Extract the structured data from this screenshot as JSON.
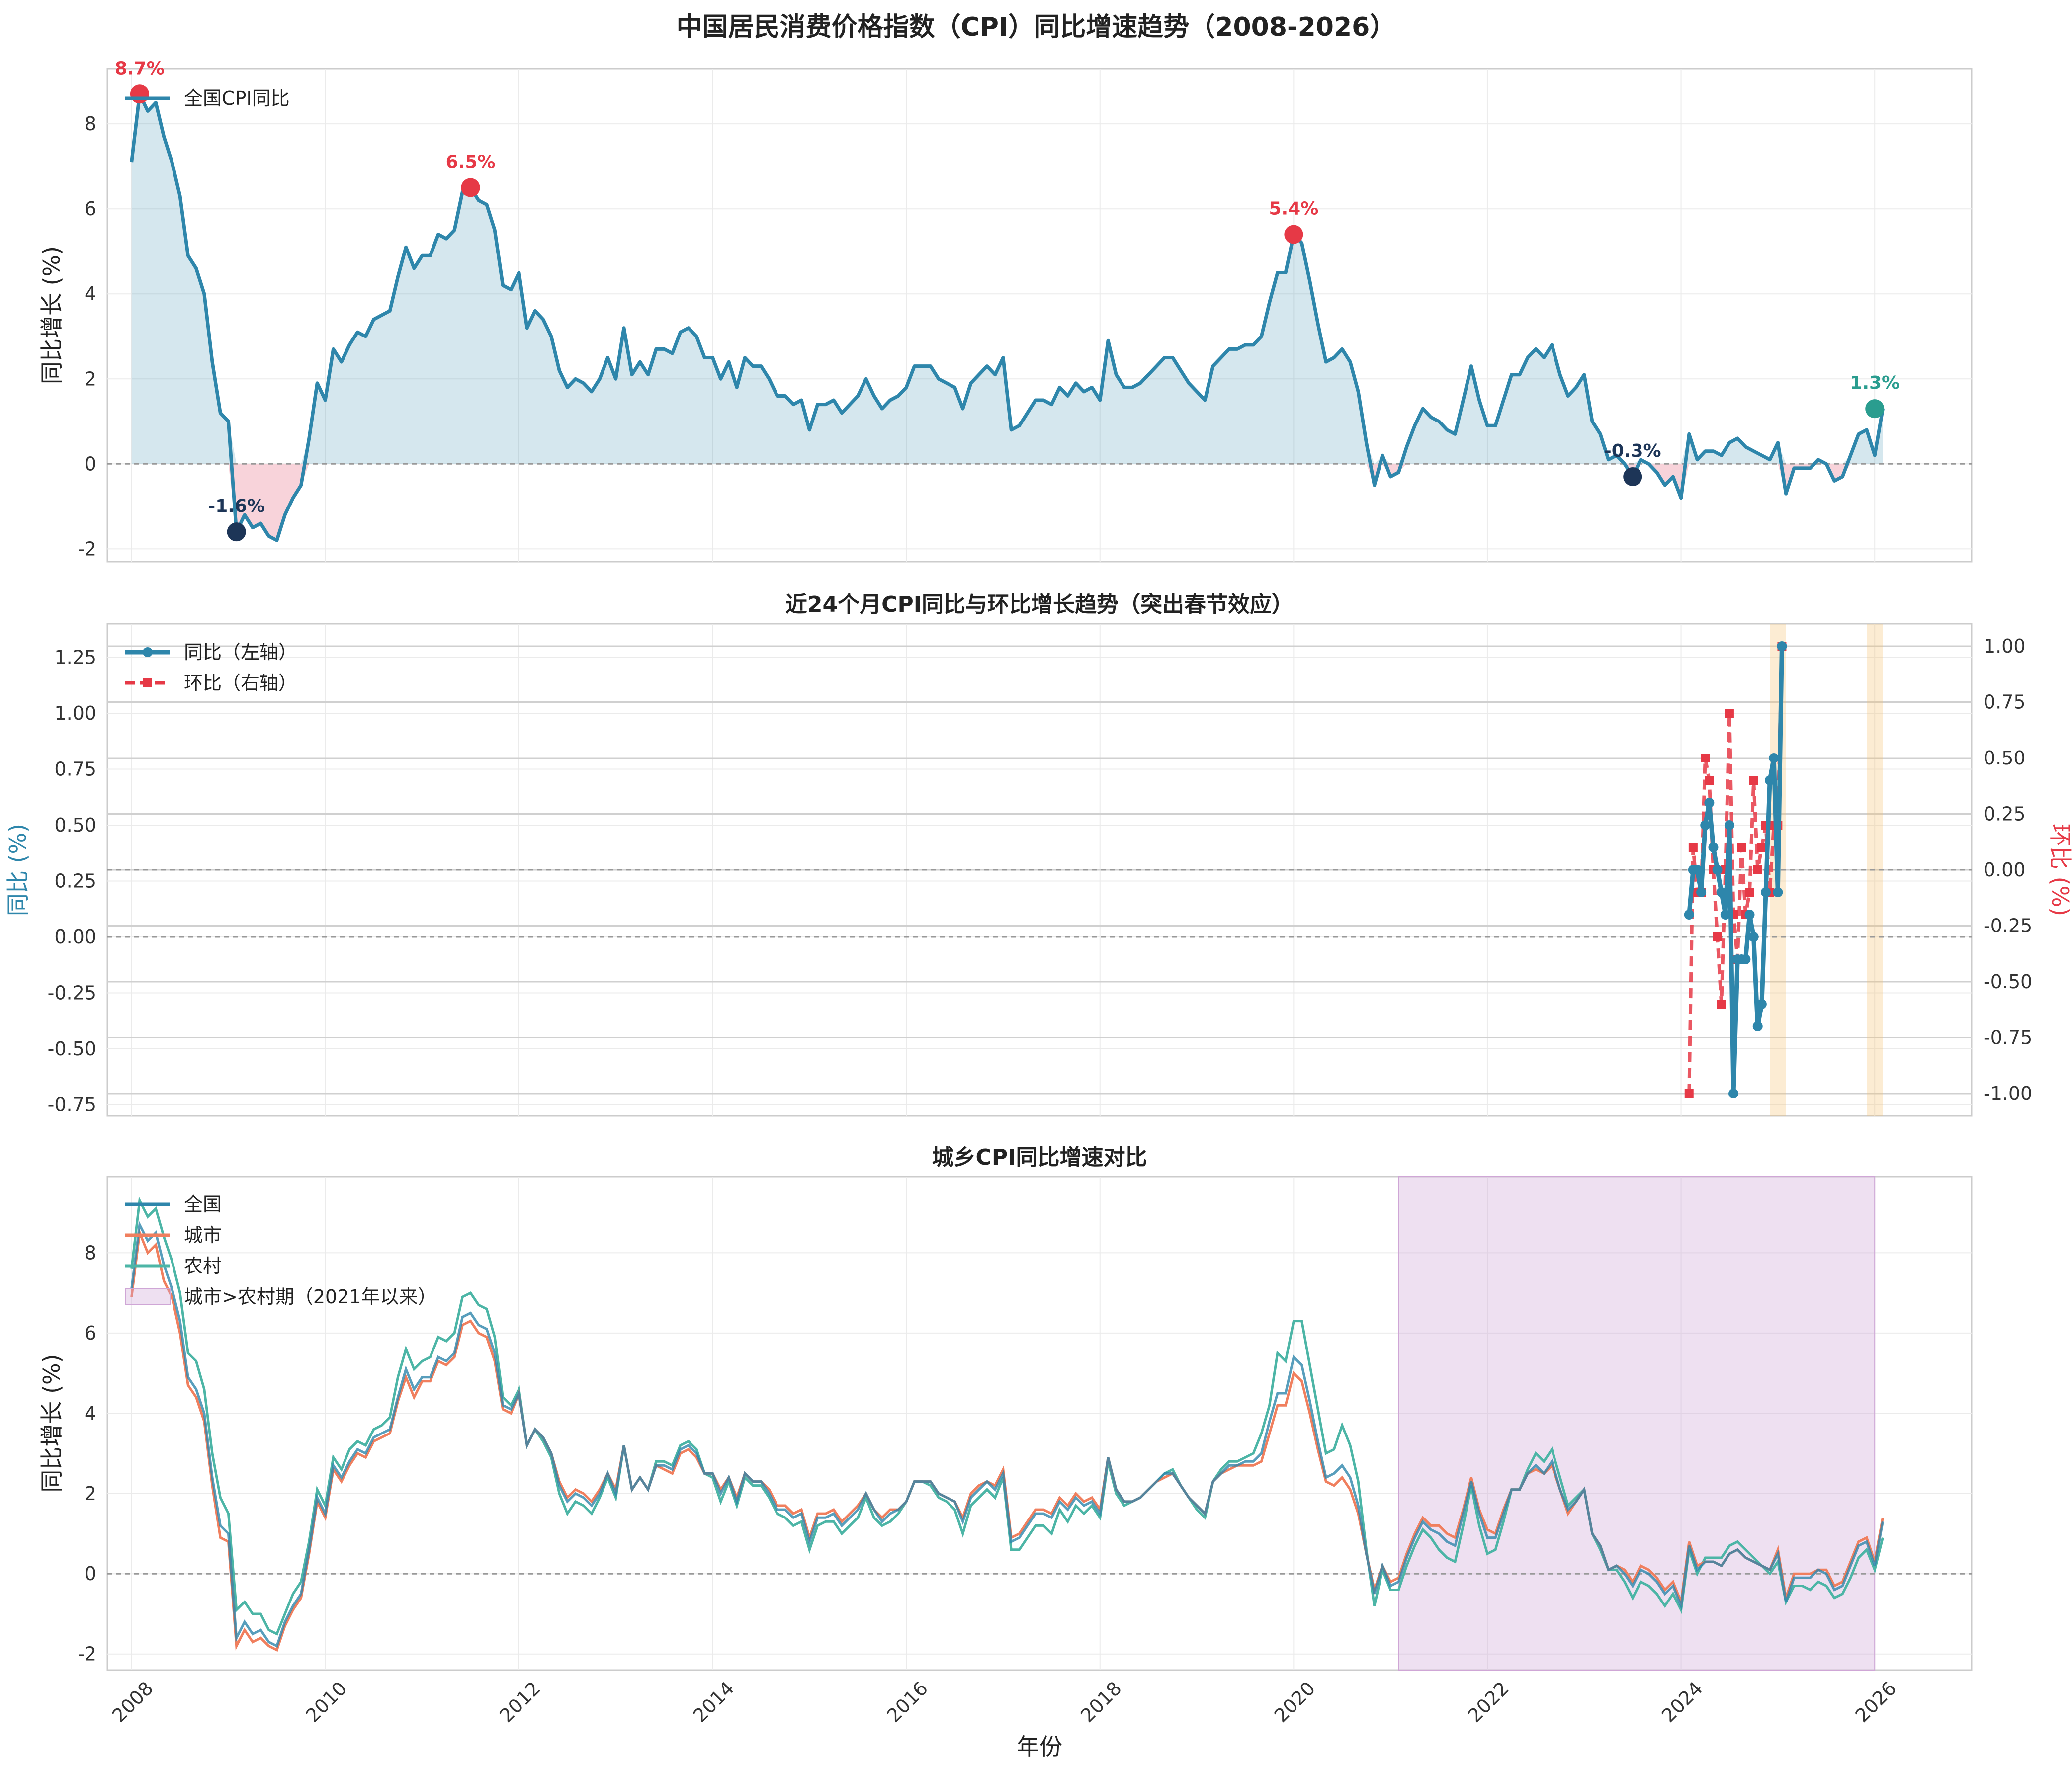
{
  "figure_title": "中国居民消费价格指数（CPI）同比增速趋势（2008-2026）",
  "x_axis_label": "年份",
  "colors": {
    "national": "#2E86AB",
    "negative_fill": "#F4B6C2",
    "peak": "#E63946",
    "trough": "#1D3557",
    "latest": "#2A9D8F",
    "mom": "#E63946",
    "urban": "#F07F5E",
    "rural": "#4CB5A6",
    "highlight": "#CFA6D6",
    "spring": "#F5C16C"
  },
  "chart_data": [
    {
      "type": "area",
      "title": "",
      "xlabel": "",
      "ylabel": "同比增长 (%)",
      "xlim": [
        2007.75,
        2027.0
      ],
      "ylim": [
        -2.3,
        9.3
      ],
      "yticks": [
        -2,
        0,
        2,
        4,
        6,
        8
      ],
      "legend": {
        "position": "top-left",
        "entries": [
          "全国CPI同比"
        ]
      },
      "grid": true,
      "series": [
        {
          "name": "全国CPI同比",
          "x_start": 2008.0,
          "x_step_months": 1,
          "values": [
            7.1,
            8.7,
            8.3,
            8.5,
            7.7,
            7.1,
            6.3,
            4.9,
            4.6,
            4.0,
            2.4,
            1.2,
            1.0,
            -1.6,
            -1.2,
            -1.5,
            -1.4,
            -1.7,
            -1.8,
            -1.2,
            -0.8,
            -0.5,
            0.6,
            1.9,
            1.5,
            2.7,
            2.4,
            2.8,
            3.1,
            3.0,
            3.4,
            3.5,
            3.6,
            4.4,
            5.1,
            4.6,
            4.9,
            4.9,
            5.4,
            5.3,
            5.5,
            6.4,
            6.5,
            6.2,
            6.1,
            5.5,
            4.2,
            4.1,
            4.5,
            3.2,
            3.6,
            3.4,
            3.0,
            2.2,
            1.8,
            2.0,
            1.9,
            1.7,
            2.0,
            2.5,
            2.0,
            3.2,
            2.1,
            2.4,
            2.1,
            2.7,
            2.7,
            2.6,
            3.1,
            3.2,
            3.0,
            2.5,
            2.5,
            2.0,
            2.4,
            1.8,
            2.5,
            2.3,
            2.3,
            2.0,
            1.6,
            1.6,
            1.4,
            1.5,
            0.8,
            1.4,
            1.4,
            1.5,
            1.2,
            1.4,
            1.6,
            2.0,
            1.6,
            1.3,
            1.5,
            1.6,
            1.8,
            2.3,
            2.3,
            2.3,
            2.0,
            1.9,
            1.8,
            1.3,
            1.9,
            2.1,
            2.3,
            2.1,
            2.5,
            0.8,
            0.9,
            1.2,
            1.5,
            1.5,
            1.4,
            1.8,
            1.6,
            1.9,
            1.7,
            1.8,
            1.5,
            2.9,
            2.1,
            1.8,
            1.8,
            1.9,
            2.1,
            2.3,
            2.5,
            2.5,
            2.2,
            1.9,
            1.7,
            1.5,
            2.3,
            2.5,
            2.7,
            2.7,
            2.8,
            2.8,
            3.0,
            3.8,
            4.5,
            4.5,
            5.4,
            5.2,
            4.3,
            3.3,
            2.4,
            2.5,
            2.7,
            2.4,
            1.7,
            0.5,
            -0.5,
            0.2,
            -0.3,
            -0.2,
            0.4,
            0.9,
            1.3,
            1.1,
            1.0,
            0.8,
            0.7,
            1.5,
            2.3,
            1.5,
            0.9,
            0.9,
            1.5,
            2.1,
            2.1,
            2.5,
            2.7,
            2.5,
            2.8,
            2.1,
            1.6,
            1.8,
            2.1,
            1.0,
            0.7,
            0.1,
            0.2,
            0.0,
            -0.3,
            0.1,
            0.0,
            -0.2,
            -0.5,
            -0.3,
            -0.8,
            0.7,
            0.1,
            0.3,
            0.3,
            0.2,
            0.5,
            0.6,
            0.4,
            0.3,
            0.2,
            0.1,
            0.5,
            -0.7,
            -0.1,
            -0.1,
            -0.1,
            0.1,
            0.0,
            -0.4,
            -0.3,
            0.2,
            0.7,
            0.8,
            0.2,
            1.3
          ]
        }
      ],
      "annotations": [
        {
          "label": "8.7%",
          "x": 2008.083,
          "y": 8.7,
          "kind": "peak"
        },
        {
          "label": "6.5%",
          "x": 2011.5,
          "y": 6.5,
          "kind": "peak"
        },
        {
          "label": "5.4%",
          "x": 2020.0,
          "y": 5.4,
          "kind": "peak"
        },
        {
          "label": "-1.6%",
          "x": 2009.083,
          "y": -1.6,
          "kind": "trough"
        },
        {
          "label": "-0.3%",
          "x": 2023.5,
          "y": -0.3,
          "kind": "trough"
        },
        {
          "label": "1.3%",
          "x": 2026.0,
          "y": 1.3,
          "kind": "latest"
        }
      ]
    },
    {
      "type": "line",
      "title": "近24个月CPI同比与环比增长趋势（突出春节效应）",
      "xlabel": "",
      "ylabel": "同比 (%)",
      "y2label": "环比 (%)",
      "xlim": [
        2007.75,
        2027.0
      ],
      "ylim": [
        -0.8,
        1.4
      ],
      "y2lim": [
        -1.1,
        1.1
      ],
      "yticks": [
        -0.75,
        -0.5,
        -0.25,
        0.0,
        0.25,
        0.5,
        0.75,
        1.0,
        1.25
      ],
      "ytick_labels": [
        "-0.75",
        "-0.50",
        "-0.25",
        "0.00",
        "0.25",
        "0.50",
        "0.75",
        "1.00",
        "1.25"
      ],
      "y2ticks": [
        -1.0,
        -0.75,
        -0.5,
        -0.25,
        0.0,
        0.25,
        0.5,
        0.75,
        1.0
      ],
      "y2tick_labels": [
        "-1.00",
        "-0.75",
        "-0.50",
        "-0.25",
        "0.00",
        "0.25",
        "0.50",
        "0.75",
        "1.00"
      ],
      "legend": {
        "position": "top-left",
        "entries": [
          "同比（左轴）",
          "环比（右轴）"
        ]
      },
      "grid": true,
      "spring_festival_bands": [
        [
          2024.917,
          2025.083
        ],
        [
          2025.917,
          2026.083
        ]
      ],
      "series": [
        {
          "name": "同比（左轴）",
          "axis": "left",
          "x_start": 2024.083,
          "x_step_months": 0.5,
          "values": [
            0.1,
            0.3,
            0.3,
            0.2,
            0.5,
            0.6,
            0.4,
            0.3,
            0.2,
            0.1,
            0.5,
            -0.7,
            -0.1,
            -0.1,
            -0.1,
            0.1,
            0.0,
            -0.4,
            -0.3,
            0.2,
            0.7,
            0.8,
            0.2,
            1.3
          ]
        },
        {
          "name": "环比（右轴）",
          "axis": "right",
          "x_start": 2024.083,
          "x_step_months": 0.5,
          "values": [
            -1.0,
            0.1,
            -0.1,
            -0.1,
            0.5,
            0.4,
            0.0,
            -0.3,
            -0.6,
            0.0,
            0.7,
            -0.2,
            -0.4,
            0.1,
            -0.2,
            -0.1,
            0.4,
            0.0,
            0.1,
            0.2,
            -0.1,
            0.2,
            0.2,
            1.0
          ]
        }
      ]
    },
    {
      "type": "line",
      "title": "城乡CPI同比增速对比",
      "xlabel": "年份",
      "ylabel": "同比增长 (%)",
      "xlim": [
        2007.75,
        2027.0
      ],
      "ylim": [
        -2.4,
        9.9
      ],
      "yticks": [
        -2,
        0,
        2,
        4,
        6,
        8
      ],
      "xticks": [
        2008,
        2010,
        2012,
        2014,
        2016,
        2018,
        2020,
        2022,
        2024,
        2026
      ],
      "legend": {
        "position": "top-left",
        "entries": [
          "全国",
          "城市",
          "农村",
          "城市>农村期（2021年以来）"
        ]
      },
      "grid": true,
      "highlight_span": [
        2021.083,
        2026.0
      ],
      "series": [
        {
          "name": "全国",
          "ref": "national"
        },
        {
          "name": "城市",
          "x_start": 2008.0,
          "x_step_months": 1,
          "values": [
            6.9,
            8.5,
            8.0,
            8.2,
            7.3,
            6.9,
            6.0,
            4.7,
            4.4,
            3.8,
            2.2,
            0.9,
            0.8,
            -1.8,
            -1.4,
            -1.7,
            -1.6,
            -1.8,
            -1.9,
            -1.3,
            -0.9,
            -0.6,
            0.5,
            1.8,
            1.4,
            2.6,
            2.3,
            2.7,
            3.0,
            2.9,
            3.3,
            3.4,
            3.5,
            4.3,
            4.9,
            4.4,
            4.8,
            4.8,
            5.3,
            5.2,
            5.4,
            6.2,
            6.3,
            6.0,
            5.9,
            5.3,
            4.1,
            4.0,
            4.5,
            3.2,
            3.6,
            3.4,
            3.0,
            2.3,
            1.9,
            2.1,
            2.0,
            1.8,
            2.1,
            2.5,
            2.1,
            3.2,
            2.1,
            2.4,
            2.1,
            2.7,
            2.6,
            2.5,
            3.0,
            3.1,
            2.9,
            2.5,
            2.5,
            2.1,
            2.4,
            1.9,
            2.5,
            2.3,
            2.3,
            2.1,
            1.7,
            1.7,
            1.5,
            1.6,
            0.9,
            1.5,
            1.5,
            1.6,
            1.3,
            1.5,
            1.7,
            2.0,
            1.6,
            1.4,
            1.6,
            1.6,
            1.8,
            2.3,
            2.3,
            2.3,
            2.0,
            1.9,
            1.8,
            1.4,
            2.0,
            2.2,
            2.3,
            2.2,
            2.6,
            0.9,
            1.0,
            1.3,
            1.6,
            1.6,
            1.5,
            1.9,
            1.7,
            2.0,
            1.8,
            1.9,
            1.6,
            2.9,
            2.1,
            1.8,
            1.8,
            1.9,
            2.1,
            2.3,
            2.4,
            2.5,
            2.2,
            1.9,
            1.7,
            1.5,
            2.3,
            2.5,
            2.6,
            2.7,
            2.7,
            2.7,
            2.8,
            3.5,
            4.2,
            4.2,
            5.0,
            4.8,
            4.0,
            3.1,
            2.3,
            2.2,
            2.4,
            2.1,
            1.5,
            0.5,
            -0.4,
            0.2,
            -0.2,
            -0.1,
            0.5,
            1.0,
            1.4,
            1.2,
            1.2,
            1.0,
            0.9,
            1.6,
            2.4,
            1.6,
            1.1,
            1.0,
            1.6,
            2.1,
            2.1,
            2.5,
            2.6,
            2.5,
            2.7,
            2.1,
            1.5,
            1.8,
            2.1,
            1.0,
            0.7,
            0.1,
            0.2,
            0.1,
            -0.2,
            0.2,
            0.1,
            -0.1,
            -0.4,
            -0.2,
            -0.7,
            0.8,
            0.2,
            0.3,
            0.3,
            0.2,
            0.5,
            0.6,
            0.4,
            0.3,
            0.2,
            0.1,
            0.6,
            -0.6,
            0.0,
            0.0,
            0.0,
            0.1,
            0.1,
            -0.3,
            -0.2,
            0.3,
            0.8,
            0.9,
            0.3,
            1.4
          ]
        },
        {
          "name": "农村",
          "x_start": 2008.0,
          "x_step_months": 1,
          "values": [
            7.6,
            9.3,
            8.9,
            9.1,
            8.4,
            7.8,
            7.0,
            5.5,
            5.3,
            4.6,
            3.0,
            1.9,
            1.5,
            -0.9,
            -0.7,
            -1.0,
            -1.0,
            -1.4,
            -1.5,
            -1.0,
            -0.5,
            -0.2,
            0.8,
            2.1,
            1.7,
            2.9,
            2.6,
            3.1,
            3.3,
            3.2,
            3.6,
            3.7,
            3.9,
            4.9,
            5.6,
            5.1,
            5.3,
            5.4,
            5.9,
            5.8,
            6.0,
            6.9,
            7.0,
            6.7,
            6.6,
            5.9,
            4.4,
            4.2,
            4.6,
            3.2,
            3.6,
            3.3,
            2.9,
            2.0,
            1.5,
            1.8,
            1.7,
            1.5,
            1.9,
            2.4,
            1.9,
            3.2,
            2.1,
            2.4,
            2.1,
            2.8,
            2.8,
            2.7,
            3.2,
            3.3,
            3.1,
            2.5,
            2.4,
            1.8,
            2.3,
            1.7,
            2.4,
            2.2,
            2.2,
            1.9,
            1.5,
            1.4,
            1.2,
            1.3,
            0.6,
            1.2,
            1.3,
            1.3,
            1.0,
            1.2,
            1.4,
            1.9,
            1.4,
            1.2,
            1.3,
            1.5,
            1.8,
            2.3,
            2.3,
            2.2,
            1.9,
            1.8,
            1.6,
            1.0,
            1.7,
            1.9,
            2.1,
            1.9,
            2.4,
            0.6,
            0.6,
            0.9,
            1.2,
            1.2,
            1.0,
            1.6,
            1.3,
            1.7,
            1.5,
            1.7,
            1.4,
            2.8,
            2.0,
            1.7,
            1.8,
            1.9,
            2.1,
            2.3,
            2.5,
            2.6,
            2.2,
            1.9,
            1.6,
            1.4,
            2.3,
            2.6,
            2.8,
            2.8,
            2.9,
            3.0,
            3.5,
            4.2,
            5.5,
            5.3,
            6.3,
            6.3,
            5.2,
            4.1,
            3.0,
            3.1,
            3.7,
            3.2,
            2.3,
            0.6,
            -0.8,
            0.1,
            -0.4,
            -0.4,
            0.2,
            0.7,
            1.1,
            0.9,
            0.6,
            0.4,
            0.3,
            1.2,
            2.2,
            1.2,
            0.5,
            0.6,
            1.3,
            2.1,
            2.1,
            2.6,
            3.0,
            2.8,
            3.1,
            2.4,
            1.7,
            1.9,
            2.1,
            1.0,
            0.6,
            0.1,
            0.1,
            -0.2,
            -0.6,
            -0.2,
            -0.3,
            -0.5,
            -0.8,
            -0.5,
            -0.9,
            0.6,
            0.0,
            0.4,
            0.4,
            0.4,
            0.7,
            0.8,
            0.6,
            0.4,
            0.2,
            0.0,
            0.3,
            -0.7,
            -0.3,
            -0.3,
            -0.4,
            -0.2,
            -0.3,
            -0.6,
            -0.5,
            -0.1,
            0.4,
            0.6,
            0.1,
            0.9
          ]
        }
      ]
    }
  ]
}
